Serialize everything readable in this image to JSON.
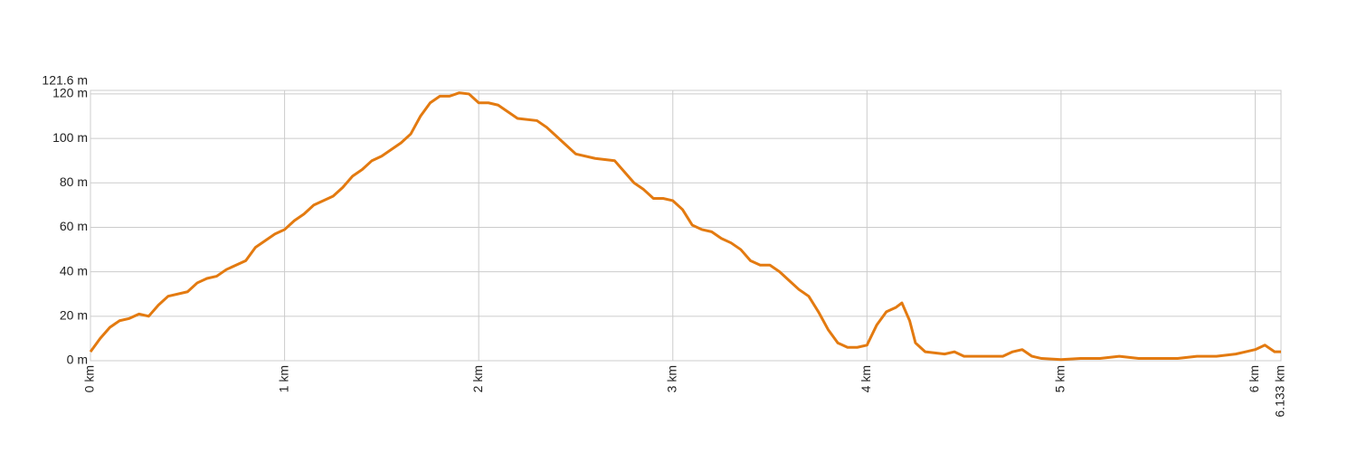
{
  "chart_data": {
    "type": "line",
    "x": [
      0,
      0.05,
      0.1,
      0.15,
      0.2,
      0.25,
      0.3,
      0.35,
      0.4,
      0.5,
      0.55,
      0.6,
      0.65,
      0.7,
      0.8,
      0.85,
      0.9,
      0.95,
      1.0,
      1.05,
      1.1,
      1.15,
      1.25,
      1.3,
      1.35,
      1.4,
      1.45,
      1.5,
      1.55,
      1.6,
      1.65,
      1.7,
      1.75,
      1.8,
      1.85,
      1.9,
      1.95,
      2.0,
      2.05,
      2.1,
      2.15,
      2.2,
      2.3,
      2.35,
      2.4,
      2.45,
      2.5,
      2.6,
      2.7,
      2.75,
      2.8,
      2.85,
      2.9,
      2.95,
      3.0,
      3.05,
      3.1,
      3.15,
      3.2,
      3.25,
      3.3,
      3.35,
      3.4,
      3.45,
      3.5,
      3.55,
      3.6,
      3.65,
      3.7,
      3.75,
      3.8,
      3.85,
      3.9,
      3.95,
      4.0,
      4.05,
      4.1,
      4.15,
      4.18,
      4.22,
      4.25,
      4.3,
      4.4,
      4.45,
      4.5,
      4.6,
      4.7,
      4.75,
      4.8,
      4.85,
      4.9,
      5.0,
      5.1,
      5.2,
      5.3,
      5.4,
      5.5,
      5.6,
      5.7,
      5.8,
      5.9,
      5.95,
      6.0,
      6.05,
      6.1,
      6.133
    ],
    "values": [
      4,
      10,
      15,
      18,
      19,
      21,
      20,
      25,
      29,
      31,
      35,
      37,
      38,
      41,
      45,
      51,
      54,
      57,
      59,
      63,
      66,
      70,
      74,
      78,
      83,
      86,
      90,
      92,
      95,
      98,
      102,
      110,
      116,
      119,
      119,
      120.5,
      120,
      116,
      116,
      115,
      112,
      109,
      108,
      105,
      101,
      97,
      93,
      91,
      90,
      85,
      80,
      77,
      73,
      73,
      72,
      68,
      61,
      59,
      58,
      55,
      53,
      50,
      45,
      43,
      43,
      40,
      36,
      32,
      29,
      22,
      14,
      8,
      6,
      6,
      7,
      16,
      22,
      24,
      26,
      18,
      8,
      4,
      3,
      4,
      2,
      2,
      2,
      4,
      5,
      2,
      1,
      0.5,
      1,
      1,
      2,
      1,
      1,
      1,
      2,
      2,
      3,
      4,
      5,
      7,
      4,
      4
    ],
    "color": "#e37a10",
    "xlim": [
      0,
      6.133
    ],
    "ylim": [
      0,
      121.6
    ],
    "xticks": [
      {
        "value": 0,
        "label": "0 km"
      },
      {
        "value": 1,
        "label": "1 km"
      },
      {
        "value": 2,
        "label": "2 km"
      },
      {
        "value": 3,
        "label": "3 km"
      },
      {
        "value": 4,
        "label": "4 km"
      },
      {
        "value": 5,
        "label": "5 km"
      },
      {
        "value": 6,
        "label": "6 km"
      },
      {
        "value": 6.133,
        "label": "6.133 km"
      }
    ],
    "yticks": [
      {
        "value": 0,
        "label": "0 m"
      },
      {
        "value": 20,
        "label": "20 m"
      },
      {
        "value": 40,
        "label": "40 m"
      },
      {
        "value": 60,
        "label": "60 m"
      },
      {
        "value": 80,
        "label": "80 m"
      },
      {
        "value": 100,
        "label": "100 m"
      },
      {
        "value": 120,
        "label": "120 m"
      },
      {
        "value": 121.6,
        "label": "121.6 m"
      }
    ],
    "grid": true
  }
}
